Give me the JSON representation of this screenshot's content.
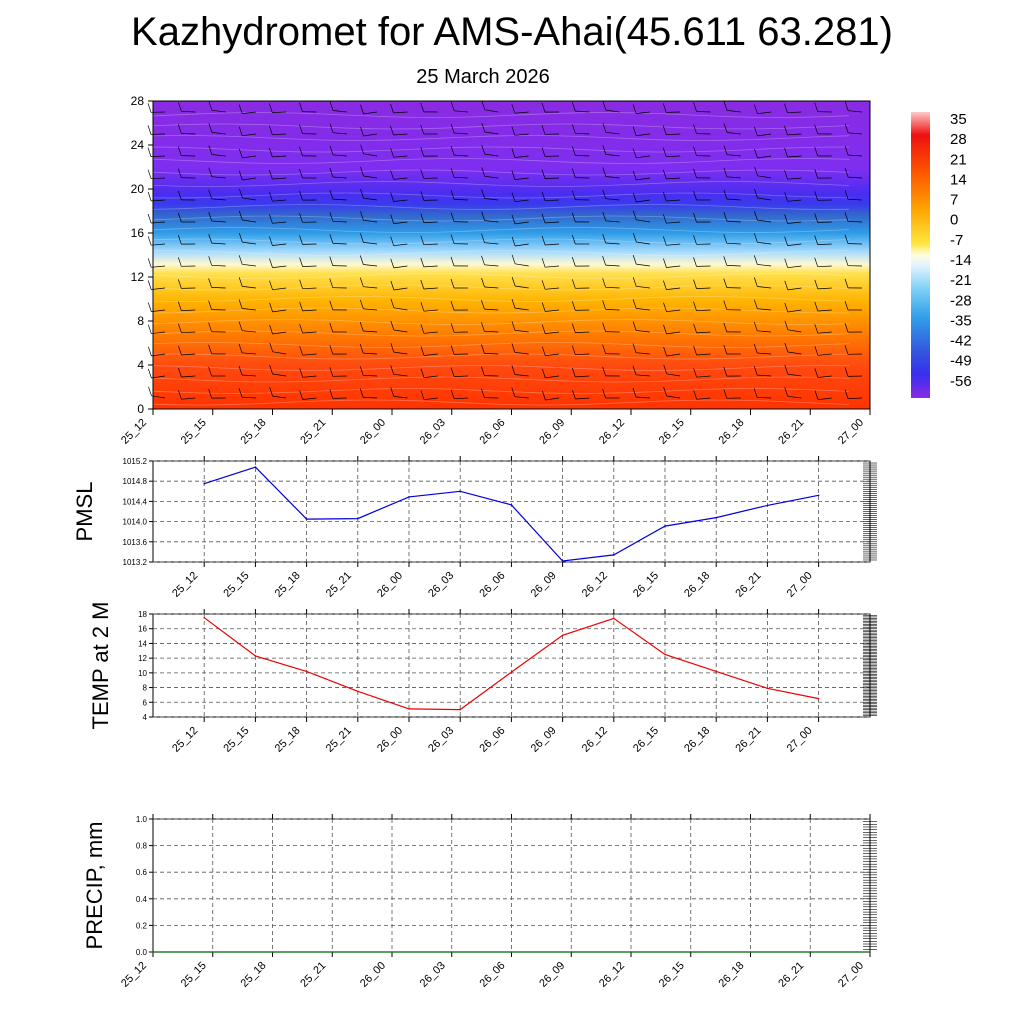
{
  "header": {
    "title": "Kazhydromet for AMS-Ahai(45.611 63.281)",
    "date": "25 March 2026"
  },
  "colors": {
    "pmsl_line": "#0000dd",
    "temp_line": "#ee0000",
    "precip_line": "#006400",
    "grid": "#555555"
  },
  "chart_data": [
    {
      "id": "cross_section",
      "type": "heatmap",
      "title": "",
      "ylabel": "",
      "ylim": [
        0,
        28
      ],
      "y_ticks": [
        "0",
        "4",
        "8",
        "12",
        "16",
        "20",
        "24",
        "28"
      ],
      "x_ticks": [
        "25_12",
        "25_15",
        "25_18",
        "25_21",
        "26_00",
        "26_03",
        "26_06",
        "26_09",
        "26_12",
        "26_15",
        "26_18",
        "26_21",
        "27_00"
      ],
      "colorbar_labels": [
        "35",
        "28",
        "21",
        "14",
        "7",
        "0",
        "-7",
        "-14",
        "-21",
        "-28",
        "-35",
        "-42",
        "-49",
        "-56"
      ],
      "temperature_profile_by_level": [
        {
          "level": 0,
          "value": 21
        },
        {
          "level": 4,
          "value": 17
        },
        {
          "level": 8,
          "value": 10
        },
        {
          "level": 12,
          "value": -7
        },
        {
          "level": 13,
          "value": -16
        },
        {
          "level": 16,
          "value": -35
        },
        {
          "level": 18,
          "value": -56
        },
        {
          "level": 20,
          "value": -62
        },
        {
          "level": 24,
          "value": -63
        },
        {
          "level": 28,
          "value": -62
        }
      ]
    },
    {
      "id": "pmsl",
      "type": "line",
      "ylabel": "PMSL",
      "ylim": [
        1013.2,
        1015.2
      ],
      "y_ticks": [
        "1013.2",
        "1013.6",
        "1014.0",
        "1014.4",
        "1014.8",
        "1015.2"
      ],
      "x": [
        "25_12",
        "25_15",
        "25_18",
        "25_21",
        "26_00",
        "26_03",
        "26_06",
        "26_09",
        "26_12",
        "26_15",
        "26_18",
        "26_21",
        "27_00"
      ],
      "values": [
        1014.75,
        1015.08,
        1014.05,
        1014.06,
        1014.49,
        1014.6,
        1014.33,
        1013.22,
        1013.34,
        1013.91,
        1014.08,
        1014.32,
        1014.52
      ]
    },
    {
      "id": "temp2m",
      "type": "line",
      "ylabel": "TEMP at 2 M",
      "ylim": [
        4,
        18
      ],
      "y_ticks": [
        "4",
        "6",
        "8",
        "10",
        "12",
        "14",
        "16",
        "18"
      ],
      "x": [
        "25_12",
        "25_15",
        "25_18",
        "25_21",
        "26_00",
        "26_03",
        "26_06",
        "26_09",
        "26_12",
        "26_15",
        "26_18",
        "26_21",
        "27_00"
      ],
      "values": [
        17.5,
        12.3,
        10.2,
        7.5,
        5.1,
        5.0,
        10.1,
        15.1,
        17.4,
        12.5,
        10.2,
        7.9,
        6.5
      ]
    },
    {
      "id": "precip",
      "type": "line",
      "ylabel": "PRECIP, mm",
      "ylim": [
        0,
        1
      ],
      "y_ticks": [
        "0.0",
        "0.2",
        "0.4",
        "0.6",
        "0.8",
        "1.0"
      ],
      "x": [
        "25_12",
        "25_15",
        "25_18",
        "25_21",
        "26_00",
        "26_03",
        "26_06",
        "26_09",
        "26_12",
        "26_15",
        "26_18",
        "26_21",
        "27_00"
      ],
      "values": [
        0,
        0,
        0,
        0,
        0,
        0,
        0,
        0,
        0,
        0,
        0,
        0,
        0
      ]
    }
  ]
}
